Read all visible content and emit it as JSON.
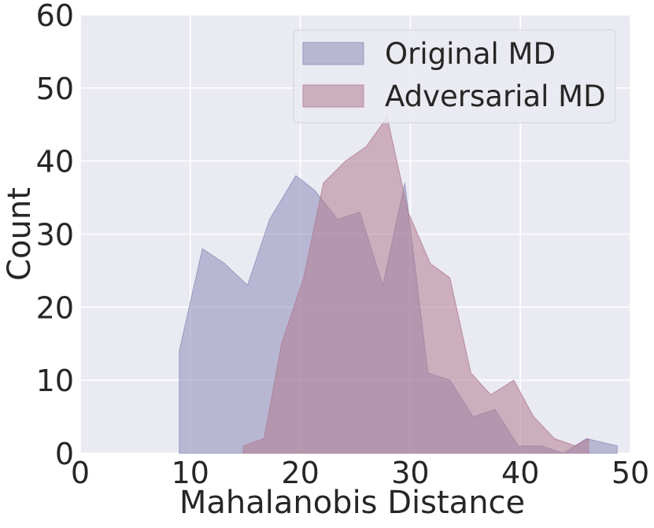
{
  "chart_data": {
    "type": "area",
    "title": "",
    "xlabel": "Mahalanobis Distance",
    "ylabel": "Count",
    "xlim": [
      0,
      50
    ],
    "ylim": [
      0,
      60
    ],
    "xticks": [
      0,
      10,
      20,
      30,
      40,
      50
    ],
    "yticks": [
      0,
      10,
      20,
      30,
      40,
      50,
      60
    ],
    "grid": true,
    "legend_position": "top-right",
    "background_color": "#eaeaf2",
    "series": [
      {
        "name": "Original MD",
        "color": "#8c8cba",
        "x": [
          9.0,
          9.0,
          11.1,
          13.1,
          15.2,
          17.2,
          19.6,
          21.3,
          23.4,
          25.4,
          27.5,
          29.5,
          31.6,
          33.6,
          35.7,
          37.7,
          39.8,
          41.9,
          43.9,
          46.0,
          48.8,
          48.8
        ],
        "y": [
          0,
          14,
          28,
          26,
          23,
          32,
          38,
          36,
          32,
          33,
          23,
          37,
          11,
          10,
          5,
          6,
          1,
          1,
          0,
          2,
          1,
          0
        ]
      },
      {
        "name": "Adversarial MD",
        "color": "#b27c92",
        "x": [
          14.8,
          14.8,
          16.7,
          18.3,
          20.3,
          22.1,
          24.1,
          26.0,
          27.9,
          29.8,
          31.8,
          33.6,
          35.5,
          37.3,
          39.4,
          41.2,
          43.1,
          45.0,
          46.2,
          46.2
        ],
        "y": [
          0,
          1,
          2,
          15,
          24,
          37,
          40,
          42,
          46,
          33,
          26,
          24,
          11,
          8,
          10,
          5,
          2,
          1,
          2,
          0
        ]
      }
    ]
  }
}
